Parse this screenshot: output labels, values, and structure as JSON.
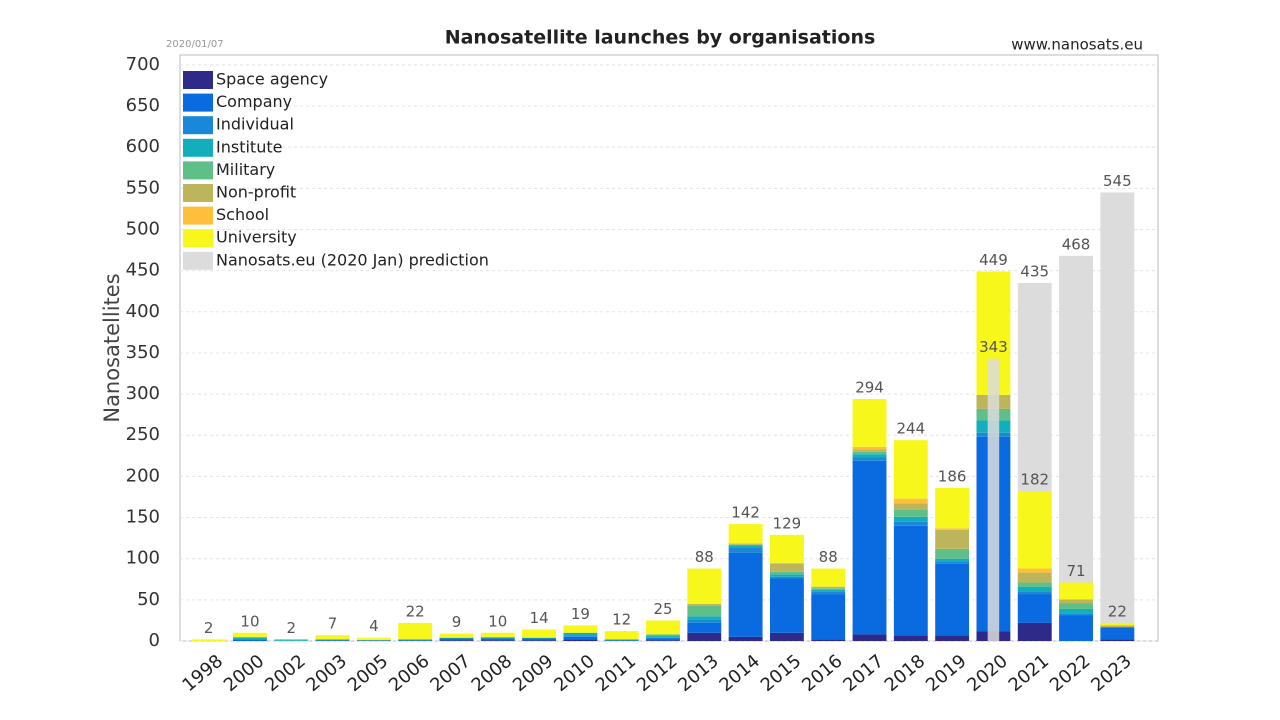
{
  "chart_data": {
    "type": "stacked_bar",
    "title": "Nanosatellite launches by organisations",
    "date": "2020/01/07",
    "source": "www.nanosats.eu",
    "y_label": "Nanosatellites",
    "categories": [
      "1998",
      "2000",
      "2002",
      "2003",
      "2005",
      "2006",
      "2007",
      "2008",
      "2009",
      "2010",
      "2011",
      "2012",
      "2013",
      "2014",
      "2015",
      "2016",
      "2017",
      "2018",
      "2019",
      "2020",
      "2021",
      "2022",
      "2023"
    ],
    "series": [
      {
        "name": "Space agency",
        "color": "#2e2a8a",
        "values": [
          0,
          0,
          0,
          0,
          0,
          0,
          1,
          1,
          1,
          2,
          0,
          1,
          10,
          5,
          10,
          2,
          8,
          7,
          7,
          12,
          22,
          0,
          2
        ]
      },
      {
        "name": "Company",
        "color": "#0a6ae0",
        "values": [
          0,
          2,
          0,
          1,
          1,
          1,
          2,
          2,
          2,
          3,
          1,
          2,
          12,
          102,
          66,
          55,
          211,
          133,
          87,
          236,
          35,
          31,
          14
        ]
      },
      {
        "name": "Individual",
        "color": "#1a88d8",
        "values": [
          0,
          0,
          0,
          0,
          0,
          0,
          0,
          0,
          0,
          1,
          0,
          1,
          4,
          6,
          2,
          3,
          4,
          5,
          3,
          5,
          3,
          2,
          1
        ]
      },
      {
        "name": "Institute",
        "color": "#12aebc",
        "values": [
          0,
          2,
          1,
          1,
          0,
          1,
          1,
          1,
          1,
          4,
          1,
          2,
          4,
          3,
          3,
          2,
          4,
          6,
          3,
          15,
          6,
          6,
          0
        ]
      },
      {
        "name": "Military",
        "color": "#5fbf88",
        "values": [
          0,
          1,
          1,
          0,
          0,
          0,
          0,
          1,
          0,
          0,
          0,
          2,
          13,
          1,
          3,
          2,
          3,
          9,
          12,
          14,
          5,
          7,
          0
        ]
      },
      {
        "name": "Non-profit",
        "color": "#bdb55c",
        "values": [
          0,
          0,
          0,
          0,
          0,
          0,
          0,
          0,
          0,
          0,
          0,
          0,
          2,
          1,
          10,
          2,
          3,
          7,
          23,
          17,
          12,
          4,
          2
        ]
      },
      {
        "name": "School",
        "color": "#ffbf3a",
        "values": [
          0,
          0,
          0,
          0,
          0,
          0,
          0,
          0,
          0,
          0,
          0,
          0,
          0,
          1,
          1,
          0,
          3,
          6,
          2,
          0,
          5,
          1,
          0
        ]
      },
      {
        "name": "University",
        "color": "#f7f71c",
        "values": [
          2,
          5,
          0,
          5,
          3,
          20,
          5,
          5,
          10,
          9,
          10,
          17,
          43,
          23,
          34,
          22,
          58,
          71,
          49,
          150,
          94,
          20,
          3
        ]
      }
    ],
    "totals": [
      2,
      10,
      2,
      7,
      4,
      22,
      9,
      10,
      14,
      19,
      12,
      25,
      88,
      142,
      129,
      88,
      294,
      244,
      186,
      449,
      182,
      71,
      22
    ],
    "prediction": {
      "name": "Nanosats.eu (2020 Jan) prediction",
      "color": "#dcdcdc",
      "values": [
        null,
        null,
        null,
        null,
        null,
        null,
        null,
        null,
        null,
        null,
        null,
        null,
        null,
        null,
        null,
        null,
        null,
        null,
        null,
        343,
        435,
        468,
        545
      ]
    },
    "ylim": [
      0,
      712
    ],
    "yticks": [
      0,
      50,
      100,
      150,
      200,
      250,
      300,
      350,
      400,
      450,
      500,
      550,
      600,
      650,
      700
    ],
    "grid": true,
    "legend": "upper left"
  }
}
